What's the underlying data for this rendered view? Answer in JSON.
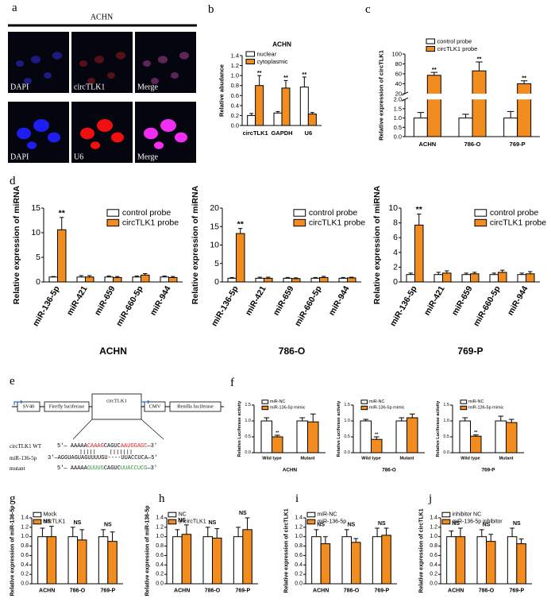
{
  "panel_labels": [
    "a",
    "b",
    "c",
    "d",
    "e",
    "f",
    "g",
    "h",
    "i",
    "j"
  ],
  "microscopy": {
    "title": "ACHN",
    "rows": [
      [
        "DAPI",
        "circTLK1",
        "Merge"
      ],
      [
        "DAPI",
        "U6",
        "Merge"
      ]
    ]
  },
  "construct": {
    "elements": [
      "SV40",
      "Firefly luciferase",
      "circTLK1",
      "CMV",
      "Renilla luciferase"
    ],
    "wt_label": "circTLK1 WT",
    "wt_seq": [
      "5'— AAAAA",
      "CAAAG",
      "CAGUC",
      "AAUGGAGC",
      "—3'"
    ],
    "mir_label": "miR-136-5p",
    "mir_seq": "3'—AGGUAGUAGUUUUGU----UUACCUCA—5'",
    "mut_label": "mutant",
    "mut_seq": [
      "5'— AAAAA",
      "GUUUG",
      "CAGUC",
      "UUACCUCG",
      "—3'"
    ]
  },
  "chart_data": [
    {
      "type": "bar",
      "title": "ACHN",
      "ylabel": "Relative abudance",
      "categories": [
        "circTLK1",
        "GAPDH",
        "U6"
      ],
      "series": [
        {
          "name": "nuclear",
          "color": "#ffffff",
          "values": [
            0.2,
            0.25,
            0.77
          ],
          "errors": [
            0.04,
            0.03,
            0.2
          ],
          "significance": [
            null,
            null,
            "**"
          ]
        },
        {
          "name": "cytoplasmic",
          "color": "#f28c1e",
          "values": [
            0.8,
            0.75,
            0.23
          ],
          "errors": [
            0.2,
            0.15,
            0.03
          ],
          "significance": [
            "**",
            "**",
            null
          ]
        }
      ],
      "ylim": [
        0,
        1.4
      ],
      "yticks": [
        {
          "value": 0,
          "label": "0.0"
        },
        0.2,
        0.4,
        0.6,
        0.8,
        {
          "value": 1,
          "label": "1.0"
        },
        1.2,
        1.4
      ],
      "legend": "upper left"
    },
    {
      "type": "bar",
      "ylabel": "Relative expression of circTLK1",
      "categories": [
        "ACHN",
        "786-O",
        "769-P"
      ],
      "series": [
        {
          "name": "control probe",
          "color": "#ffffff",
          "values": [
            1,
            1,
            1
          ],
          "errors": [
            0.3,
            0.2,
            0.35
          ],
          "significance": [
            null,
            null,
            null
          ]
        },
        {
          "name": "circTLK1 probe",
          "color": "#f28c1e",
          "values": [
            57,
            66,
            40
          ],
          "errors": [
            6,
            18,
            6
          ],
          "significance": [
            "**",
            "**",
            "**"
          ]
        }
      ],
      "ylim": [
        0,
        100
      ],
      "ybreak": [
        2,
        20
      ],
      "yticks": [
        {
          "value": 0,
          "label": "0.0"
        },
        0.5,
        {
          "value": 1,
          "label": "1.0"
        },
        1.5,
        {
          "value": 2,
          "label": "2.0"
        },
        20,
        40,
        60,
        80,
        100
      ],
      "legend": "upper left"
    },
    {
      "type": "bar",
      "ylabel": "Relative expression of miRNA",
      "xlabel": "ACHN",
      "categories": [
        "miR-136-5p",
        "miR-421",
        "miR-659",
        "miR-660-5p",
        "miR-944"
      ],
      "series": [
        {
          "name": "control probe",
          "color": "#ffffff",
          "values": [
            1,
            1,
            1,
            1,
            1
          ],
          "errors": [
            0.1,
            0.3,
            0.2,
            0.2,
            0.2
          ],
          "significance": [
            null,
            null,
            null,
            null,
            null
          ]
        },
        {
          "name": "circTLK1 probe",
          "color": "#f28c1e",
          "values": [
            10.6,
            1,
            0.9,
            1.4,
            0.9
          ],
          "errors": [
            2.5,
            0.3,
            0.2,
            0.3,
            0.2
          ],
          "significance": [
            "**",
            null,
            null,
            null,
            null
          ]
        }
      ],
      "ylim": [
        0,
        15
      ],
      "yticks": [
        0,
        5,
        10,
        15
      ],
      "legend": "upper right"
    },
    {
      "type": "bar",
      "ylabel": "Relative expression of miRNA",
      "xlabel": "786-O",
      "categories": [
        "miR-136-5p",
        "miR-421",
        "miR-659",
        "miR-660-5p",
        "miR-944"
      ],
      "series": [
        {
          "name": "control probe",
          "color": "#ffffff",
          "values": [
            1,
            1,
            1,
            1,
            1
          ],
          "errors": [
            0.2,
            0.3,
            0.2,
            0.2,
            0.2
          ],
          "significance": [
            null,
            null,
            null,
            null,
            null
          ]
        },
        {
          "name": "circTLK1 probe",
          "color": "#f28c1e",
          "values": [
            13.1,
            1,
            0.9,
            1.2,
            1.1
          ],
          "errors": [
            1.4,
            0.3,
            0.2,
            0.3,
            0.2
          ],
          "significance": [
            "**",
            null,
            null,
            null,
            null
          ]
        }
      ],
      "ylim": [
        0,
        20
      ],
      "yticks": [
        0,
        5,
        10,
        15,
        20
      ],
      "legend": "upper right"
    },
    {
      "type": "bar",
      "ylabel": "Relative expression of miRNA",
      "xlabel": "769-P",
      "categories": [
        "miR-136-5p",
        "miR-421",
        "miR-659",
        "miR-660-5p",
        "miR-944"
      ],
      "series": [
        {
          "name": "control probe",
          "color": "#ffffff",
          "values": [
            1,
            1,
            1,
            1,
            1
          ],
          "errors": [
            0.2,
            0.3,
            0.2,
            0.2,
            0.2
          ],
          "significance": [
            null,
            null,
            null,
            null,
            null
          ]
        },
        {
          "name": "circTLK1 probe",
          "color": "#f28c1e",
          "values": [
            7.7,
            1.2,
            1.1,
            1.3,
            1.1
          ],
          "errors": [
            1.5,
            0.3,
            0.2,
            0.3,
            0.3
          ],
          "significance": [
            "**",
            null,
            null,
            null,
            null
          ]
        }
      ],
      "ylim": [
        0,
        10
      ],
      "yticks": [
        0,
        2,
        4,
        6,
        8,
        10
      ],
      "legend": "upper right"
    },
    {
      "type": "bar",
      "ylabel": "Relative Luciferase activity",
      "xlabel": "ACHN",
      "categories": [
        "Wild type",
        "Mutant"
      ],
      "series": [
        {
          "name": "miR-NC",
          "color": "#ffffff",
          "values": [
            1,
            1
          ],
          "errors": [
            0.1,
            0.1
          ],
          "significance": [
            null,
            null
          ]
        },
        {
          "name": "miR-136-5p mimic",
          "color": "#f28c1e",
          "values": [
            0.5,
            0.97
          ],
          "errors": [
            0.05,
            0.25
          ],
          "significance": [
            "**",
            null
          ]
        }
      ],
      "ylim": [
        0,
        1.5
      ],
      "yticks": [
        {
          "value": 0,
          "label": "0.0"
        },
        0.5,
        {
          "value": 1,
          "label": "1.0"
        },
        1.5
      ],
      "legend": "upper left"
    },
    {
      "type": "bar",
      "ylabel": "Relative Luciferase activity",
      "xlabel": "786-O",
      "categories": [
        "Wild type",
        "Mutant"
      ],
      "series": [
        {
          "name": "miR-NC",
          "color": "#ffffff",
          "values": [
            1,
            1
          ],
          "errors": [
            0.05,
            0.1
          ],
          "significance": [
            null,
            null
          ]
        },
        {
          "name": "miR-136-5p mimic",
          "color": "#f28c1e",
          "values": [
            0.42,
            1.1
          ],
          "errors": [
            0.08,
            0.12
          ],
          "significance": [
            "**",
            null
          ]
        }
      ],
      "ylim": [
        0,
        1.5
      ],
      "yticks": [
        {
          "value": 0,
          "label": "0.0"
        },
        0.5,
        {
          "value": 1,
          "label": "1.0"
        },
        1.5
      ],
      "legend": "upper left"
    },
    {
      "type": "bar",
      "ylabel": "Relative Luciferase activity",
      "xlabel": "769-P",
      "categories": [
        "Wild type",
        "Mutant"
      ],
      "series": [
        {
          "name": "miR-NC",
          "color": "#ffffff",
          "values": [
            1,
            1
          ],
          "errors": [
            0.1,
            0.15
          ],
          "significance": [
            null,
            null
          ]
        },
        {
          "name": "miR-136-5p mimic",
          "color": "#f28c1e",
          "values": [
            0.52,
            0.95
          ],
          "errors": [
            0.04,
            0.1
          ],
          "significance": [
            "**",
            null
          ]
        }
      ],
      "ylim": [
        0,
        1.5
      ],
      "yticks": [
        {
          "value": 0,
          "label": "0.0"
        },
        0.5,
        {
          "value": 1,
          "label": "1.0"
        },
        1.5
      ],
      "legend": "upper left"
    },
    {
      "type": "bar",
      "ylabel": "Relative expression of miR-136-5p",
      "categories": [
        "ACHN",
        "786-O",
        "769-P"
      ],
      "group_labels": [
        "NS",
        "NS",
        "NS"
      ],
      "series": [
        {
          "name": "Mock",
          "color": "#ffffff",
          "values": [
            1,
            1,
            1
          ],
          "errors": [
            0.18,
            0.2,
            0.15
          ]
        },
        {
          "name": "circTLK1",
          "color": "#f28c1e",
          "values": [
            1,
            0.93,
            0.9
          ],
          "errors": [
            0.22,
            0.22,
            0.2
          ]
        }
      ],
      "ylim": [
        0,
        1.4
      ],
      "yticks": [
        {
          "value": 0,
          "label": "0.0"
        },
        0.2,
        0.4,
        0.6,
        0.8,
        {
          "value": 1,
          "label": "1.0"
        },
        1.2,
        1.4
      ],
      "legend": "upper left"
    },
    {
      "type": "bar",
      "ylabel": "Relative expression of miR-136-5p",
      "categories": [
        "ACHN",
        "786-O",
        "769-P"
      ],
      "group_labels": [
        "NS",
        "NS",
        "NS"
      ],
      "series": [
        {
          "name": "NC",
          "color": "#ffffff",
          "values": [
            1,
            1,
            1
          ],
          "errors": [
            0.15,
            0.2,
            0.2
          ]
        },
        {
          "name": "shcircTLK1",
          "color": "#f28c1e",
          "values": [
            1.05,
            0.97,
            1.15
          ],
          "errors": [
            0.2,
            0.2,
            0.25
          ]
        }
      ],
      "ylim": [
        0,
        1.4
      ],
      "yticks": [
        {
          "value": 0,
          "label": "0.0"
        },
        0.2,
        0.4,
        0.6,
        0.8,
        {
          "value": 1,
          "label": "1.0"
        },
        1.2,
        1.4
      ],
      "legend": "upper left"
    },
    {
      "type": "bar",
      "ylabel": "Relative expression of circTLK1",
      "categories": [
        "ACHN",
        "786-O",
        "769-P"
      ],
      "group_labels": [
        "NS",
        "NS",
        "NS"
      ],
      "series": [
        {
          "name": "miR-NC",
          "color": "#ffffff",
          "values": [
            1,
            1,
            1
          ],
          "errors": [
            0.15,
            0.15,
            0.18
          ]
        },
        {
          "name": "miR-136-5p",
          "color": "#f28c1e",
          "values": [
            0.85,
            0.88,
            1.03
          ],
          "errors": [
            0.15,
            0.08,
            0.15
          ]
        }
      ],
      "ylim": [
        0,
        1.4
      ],
      "yticks": [
        {
          "value": 0,
          "label": "0.0"
        },
        0.2,
        0.4,
        0.6,
        0.8,
        {
          "value": 1,
          "label": "1.0"
        },
        1.2,
        1.4
      ],
      "legend": "upper left"
    },
    {
      "type": "bar",
      "ylabel": "Relative expression of circTLK1",
      "categories": [
        "ACHN",
        "786-O",
        "769-P"
      ],
      "group_labels": [
        "NS",
        "NS",
        "NS"
      ],
      "series": [
        {
          "name": "inhibitor NC",
          "color": "#ffffff",
          "values": [
            1,
            1,
            1
          ],
          "errors": [
            0.12,
            0.15,
            0.18
          ]
        },
        {
          "name": "miR-136-5p inhibitor",
          "color": "#f28c1e",
          "values": [
            1,
            0.9,
            0.85
          ],
          "errors": [
            0.18,
            0.15,
            0.1
          ]
        }
      ],
      "ylim": [
        0,
        1.4
      ],
      "yticks": [
        {
          "value": 0,
          "label": "0.0"
        },
        0.2,
        0.4,
        0.6,
        0.8,
        {
          "value": 1,
          "label": "1.0"
        },
        1.2,
        1.4
      ],
      "legend": "upper left"
    }
  ]
}
